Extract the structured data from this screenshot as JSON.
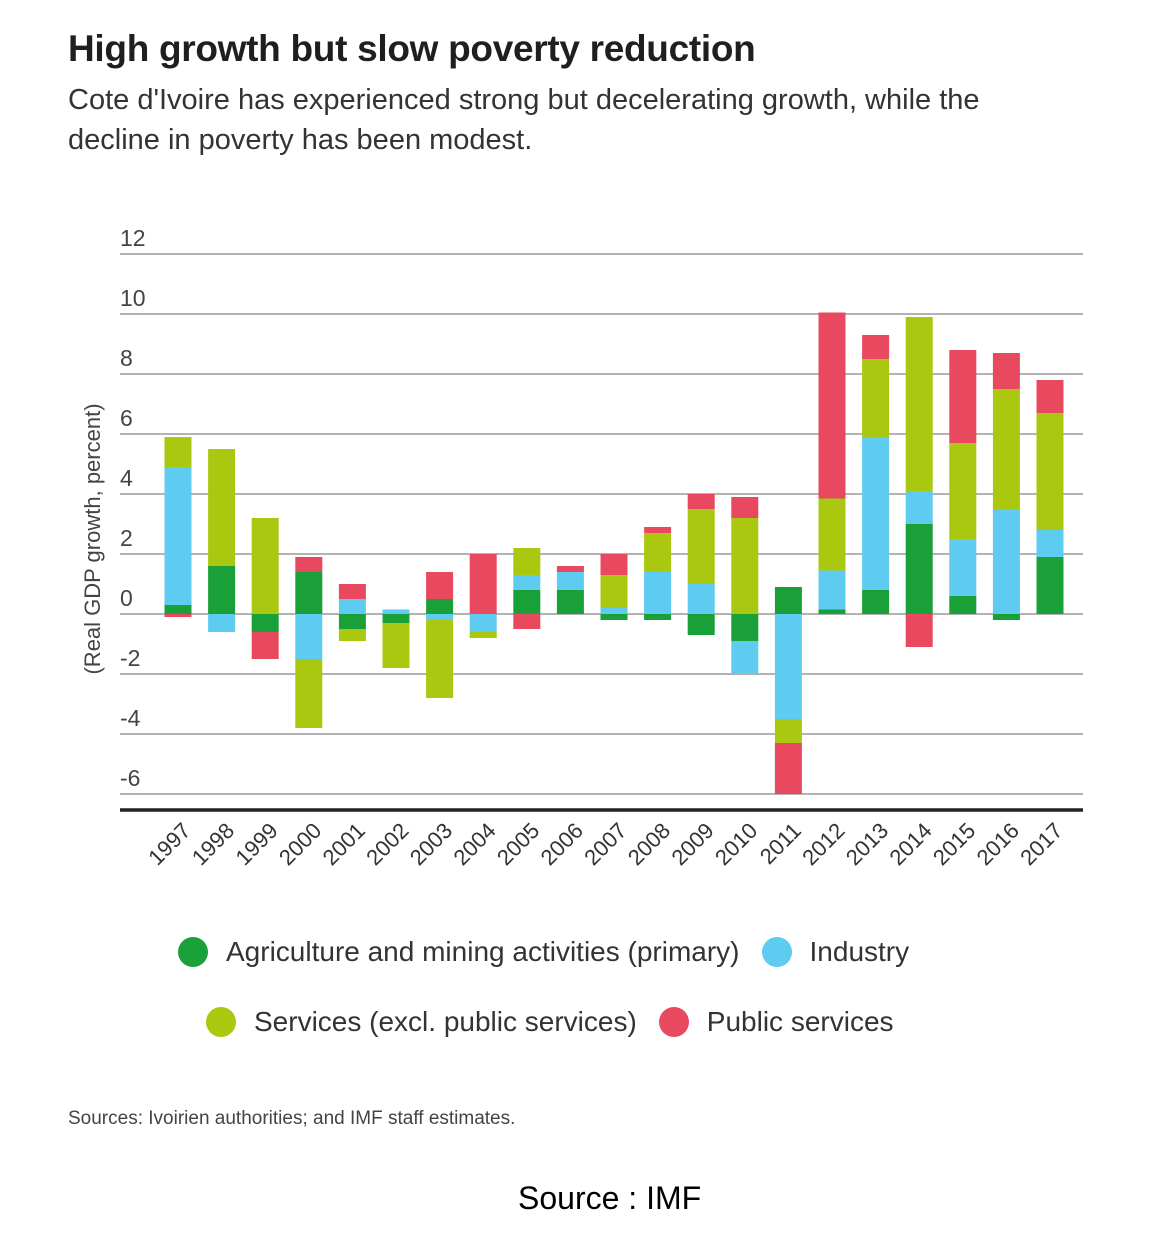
{
  "title": "High growth but slow poverty reduction",
  "subtitle": "Cote d'Ivoire has experienced strong but decelerating growth, while the decline in poverty has been modest.",
  "sources": "Sources: Ivoirien authorities; and IMF staff estimates.",
  "footer": "Source : IMF",
  "chart_data": {
    "type": "bar",
    "stacked": true,
    "ylabel": "(Real GDP growth, percent)",
    "xlabel": "",
    "ylim": [
      -6.5,
      12
    ],
    "yticks": [
      12,
      10,
      8,
      6,
      4,
      2,
      0,
      -2,
      -4,
      -6
    ],
    "grid": true,
    "legend_position": "bottom",
    "categories": [
      "1997",
      "1998",
      "1999",
      "2000",
      "2001",
      "2002",
      "2003",
      "2004",
      "2005",
      "2006",
      "2007",
      "2008",
      "2009",
      "2010",
      "2011",
      "2012",
      "2013",
      "2014",
      "2015",
      "2016",
      "2017"
    ],
    "series": [
      {
        "name": "Agriculture and mining activities (primary)",
        "color": "#1aa038",
        "values": [
          0.3,
          1.6,
          -0.6,
          1.4,
          -0.5,
          -0.3,
          0.5,
          0,
          0.8,
          0.8,
          -0.2,
          -0.2,
          -0.7,
          -0.9,
          0.9,
          0.15,
          0.8,
          3.0,
          0.6,
          -0.2,
          1.9
        ]
      },
      {
        "name": "Industry",
        "color": "#5ecbf0",
        "values": [
          4.6,
          -0.6,
          0,
          -1.5,
          0.5,
          0.15,
          -0.2,
          -0.6,
          0.5,
          0.6,
          0.2,
          1.4,
          1.0,
          -1.1,
          -3.5,
          1.3,
          5.1,
          1.1,
          1.9,
          3.5,
          0.9
        ]
      },
      {
        "name": "Services (excl. public services)",
        "color": "#a9c80f",
        "values": [
          1.0,
          3.9,
          3.2,
          -2.3,
          -0.4,
          -1.5,
          -2.6,
          -0.2,
          0.9,
          0,
          1.1,
          1.3,
          2.5,
          3.2,
          -0.8,
          2.4,
          2.6,
          5.8,
          3.2,
          4.0,
          3.9
        ]
      },
      {
        "name": "Public services",
        "color": "#e8495f",
        "values": [
          -0.1,
          0,
          -0.9,
          0.5,
          0.5,
          0,
          0.9,
          2.0,
          -0.5,
          0.2,
          0.7,
          0.2,
          0.5,
          0.7,
          -1.7,
          6.2,
          0.8,
          -1.1,
          3.1,
          1.2,
          1.1
        ]
      }
    ]
  }
}
